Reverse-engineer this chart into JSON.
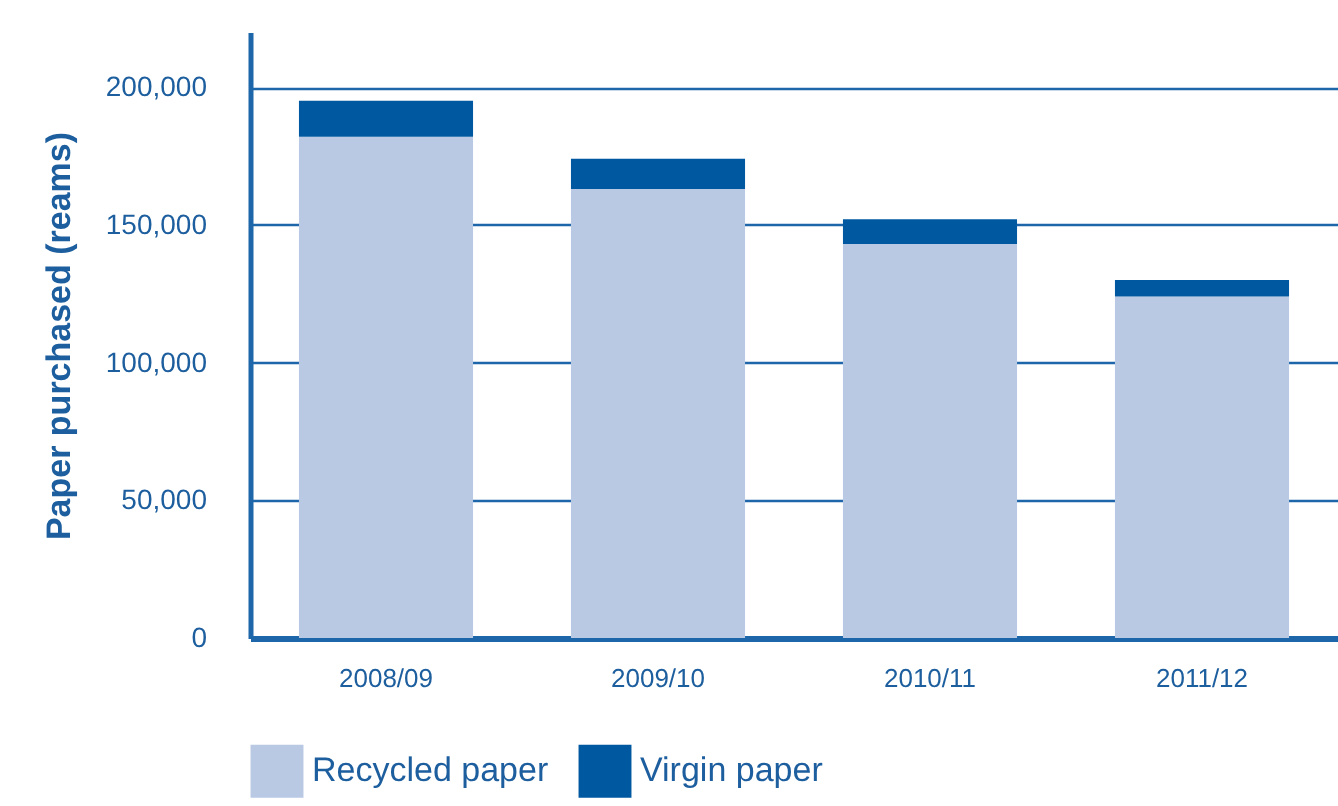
{
  "chart_data": {
    "type": "bar",
    "ylabel": "Paper purchased (reams)",
    "categories": [
      "2008/09",
      "2009/10",
      "2010/11",
      "2011/12"
    ],
    "series": [
      {
        "name": "Recycled paper",
        "color": "#b9c9e4",
        "values": [
          182000,
          163000,
          143000,
          124000
        ]
      },
      {
        "name": "Virgin paper",
        "color": "#0058a0",
        "values": [
          13000,
          11000,
          9000,
          6000
        ]
      }
    ],
    "stacked": true,
    "ylim": [
      0,
      220000
    ],
    "yticks": [
      0,
      {
        "value": 50000,
        "label": "50,000"
      },
      {
        "value": 100000,
        "label": "100,000"
      },
      {
        "value": 150000,
        "label": "150,000"
      },
      {
        "value": 200000,
        "label": "200,000"
      }
    ],
    "grid": "y",
    "legend": "bottom"
  }
}
